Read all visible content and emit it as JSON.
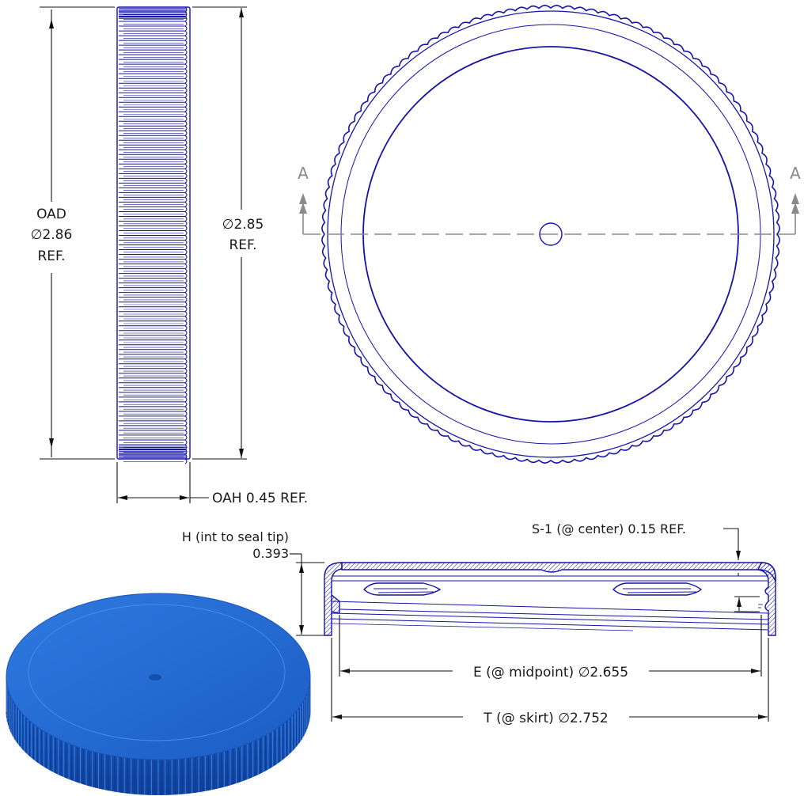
{
  "side_view": {
    "oad_label": "OAD",
    "oad_value": "∅2.86",
    "oad_ref": "REF.",
    "dia_value": "∅2.85",
    "dia_ref": "REF.",
    "oah_label": "OAH 0.45 REF."
  },
  "top_view": {
    "section_left": "A",
    "section_right": "A"
  },
  "section_view": {
    "s1_label": "S-1 (@ center) 0.15 REF.",
    "h_label": "H (int to seal tip)",
    "h_value": "0.393",
    "e_label": "E (@ midpoint)  ∅2.655",
    "t_label": "T (@ skirt)  ∅2.752"
  },
  "colors": {
    "line_blue": "#1414a8",
    "cap_blue": "#1f62c8",
    "dim_black": "#111111",
    "section_gray": "#8a8a8a"
  }
}
